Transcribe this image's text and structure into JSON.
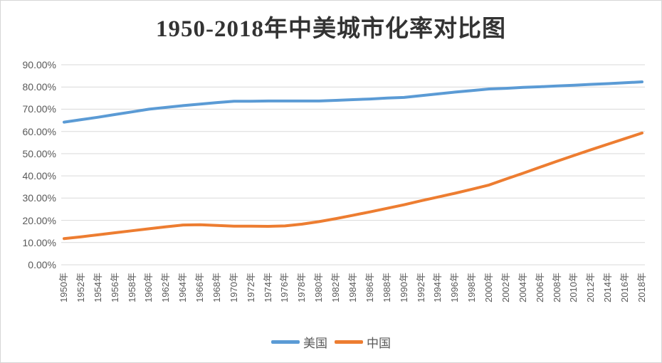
{
  "chart_data": {
    "type": "line",
    "title": "1950-2018年中美城市化率对比图",
    "xlabel": "",
    "ylabel": "",
    "ylim": [
      0,
      90
    ],
    "ytick_step": 10,
    "ytick_labels": [
      "0.00%",
      "10.00%",
      "20.00%",
      "30.00%",
      "40.00%",
      "50.00%",
      "60.00%",
      "70.00%",
      "80.00%",
      "90.00%"
    ],
    "grid": "horizontal",
    "legend_position": "bottom-center",
    "categories": [
      "1950年",
      "1952年",
      "1954年",
      "1956年",
      "1958年",
      "1960年",
      "1962年",
      "1964年",
      "1966年",
      "1968年",
      "1970年",
      "1972年",
      "1974年",
      "1976年",
      "1978年",
      "1980年",
      "1982年",
      "1984年",
      "1986年",
      "1988年",
      "1990年",
      "1992年",
      "1994年",
      "1996年",
      "1998年",
      "2000年",
      "2002年",
      "2004年",
      "2006年",
      "2008年",
      "2010年",
      "2012年",
      "2014年",
      "2016年",
      "2018年"
    ],
    "series": [
      {
        "name": "美国",
        "color": "#5B9BD5",
        "values": [
          64.2,
          65.3,
          66.4,
          67.6,
          68.8,
          70.0,
          70.8,
          71.6,
          72.3,
          73.0,
          73.6,
          73.6,
          73.7,
          73.7,
          73.7,
          73.7,
          74.0,
          74.3,
          74.6,
          75.0,
          75.3,
          76.1,
          76.9,
          77.7,
          78.4,
          79.1,
          79.4,
          79.8,
          80.1,
          80.5,
          80.8,
          81.2,
          81.5,
          81.9,
          82.3
        ]
      },
      {
        "name": "中国",
        "color": "#ED7D31",
        "values": [
          11.8,
          12.6,
          13.5,
          14.4,
          15.3,
          16.2,
          17.1,
          17.9,
          18.0,
          17.7,
          17.4,
          17.4,
          17.3,
          17.5,
          18.3,
          19.4,
          20.8,
          22.3,
          23.8,
          25.4,
          27.0,
          28.8,
          30.5,
          32.2,
          34.0,
          35.9,
          38.6,
          41.2,
          43.9,
          46.6,
          49.2,
          51.8,
          54.3,
          56.8,
          59.3
        ]
      }
    ]
  },
  "colors": {
    "background": "#FFFFFF",
    "border": "#D6D6D6",
    "gridline": "#D9D9D9",
    "tick_text": "#595959",
    "title_text": "#333333"
  }
}
